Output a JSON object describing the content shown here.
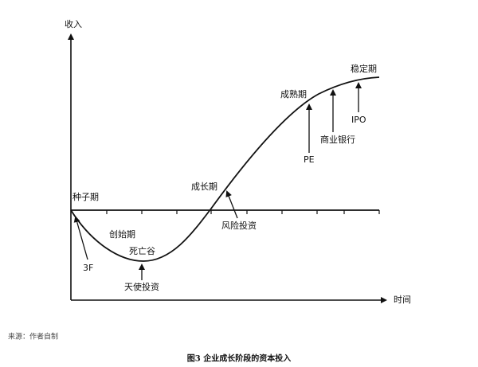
{
  "axes": {
    "y_label": "收入",
    "x_label": "时间"
  },
  "stages": {
    "seed": "种子期",
    "startup": "创始期",
    "death_valley": "死亡谷",
    "growth": "成长期",
    "mature": "成熟期",
    "stable": "稳定期"
  },
  "funding": {
    "family": "3F",
    "angel": "天使投资",
    "venture": "风险投资",
    "pe": "PE",
    "bank": "商业银行",
    "ipo": "IPO"
  },
  "source": "来源：作者自制",
  "caption": "图3 企业成长阶段的资本投入"
}
